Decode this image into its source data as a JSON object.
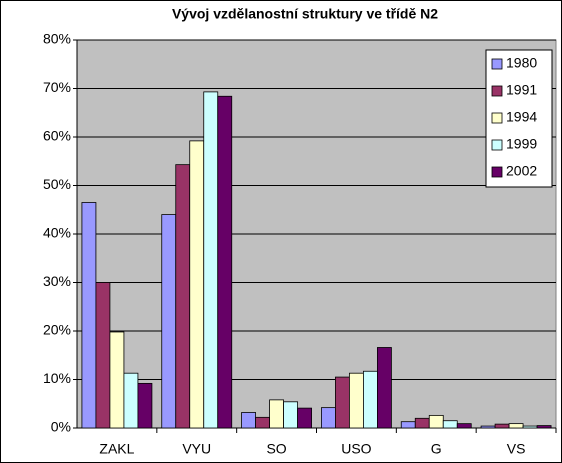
{
  "chart_data": {
    "type": "bar",
    "title": "Vývoj vzdělanostní struktury ve třídě N2",
    "categories": [
      "ZAKL",
      "VYU",
      "SO",
      "USO",
      "G",
      "VS"
    ],
    "series": [
      {
        "name": "1980",
        "color": "#9999ff",
        "values": [
          46.5,
          44,
          3.2,
          4.2,
          1.3,
          0.4
        ]
      },
      {
        "name": "1991",
        "color": "#993366",
        "values": [
          30,
          54.3,
          2.2,
          10.5,
          2.0,
          0.8
        ]
      },
      {
        "name": "1994",
        "color": "#ffffcc",
        "values": [
          19.8,
          59.2,
          5.8,
          11.3,
          2.6,
          0.9
        ]
      },
      {
        "name": "1999",
        "color": "#ccffff",
        "values": [
          11.3,
          69.3,
          5.4,
          11.7,
          1.5,
          0.4
        ]
      },
      {
        "name": "2002",
        "color": "#660066",
        "values": [
          9.2,
          68.4,
          4.1,
          16.6,
          0.9,
          0.5
        ]
      }
    ],
    "ylim": [
      0,
      80
    ],
    "yticks": [
      {
        "value": 0,
        "label": "0%"
      },
      {
        "value": 10,
        "label": "10%"
      },
      {
        "value": 20,
        "label": "20%"
      },
      {
        "value": 30,
        "label": "30%"
      },
      {
        "value": 40,
        "label": "40%"
      },
      {
        "value": 50,
        "label": "50%"
      },
      {
        "value": 60,
        "label": "60%"
      },
      {
        "value": 70,
        "label": "70%"
      },
      {
        "value": 80,
        "label": "80%"
      }
    ],
    "grid": true,
    "legend": "upper right"
  }
}
